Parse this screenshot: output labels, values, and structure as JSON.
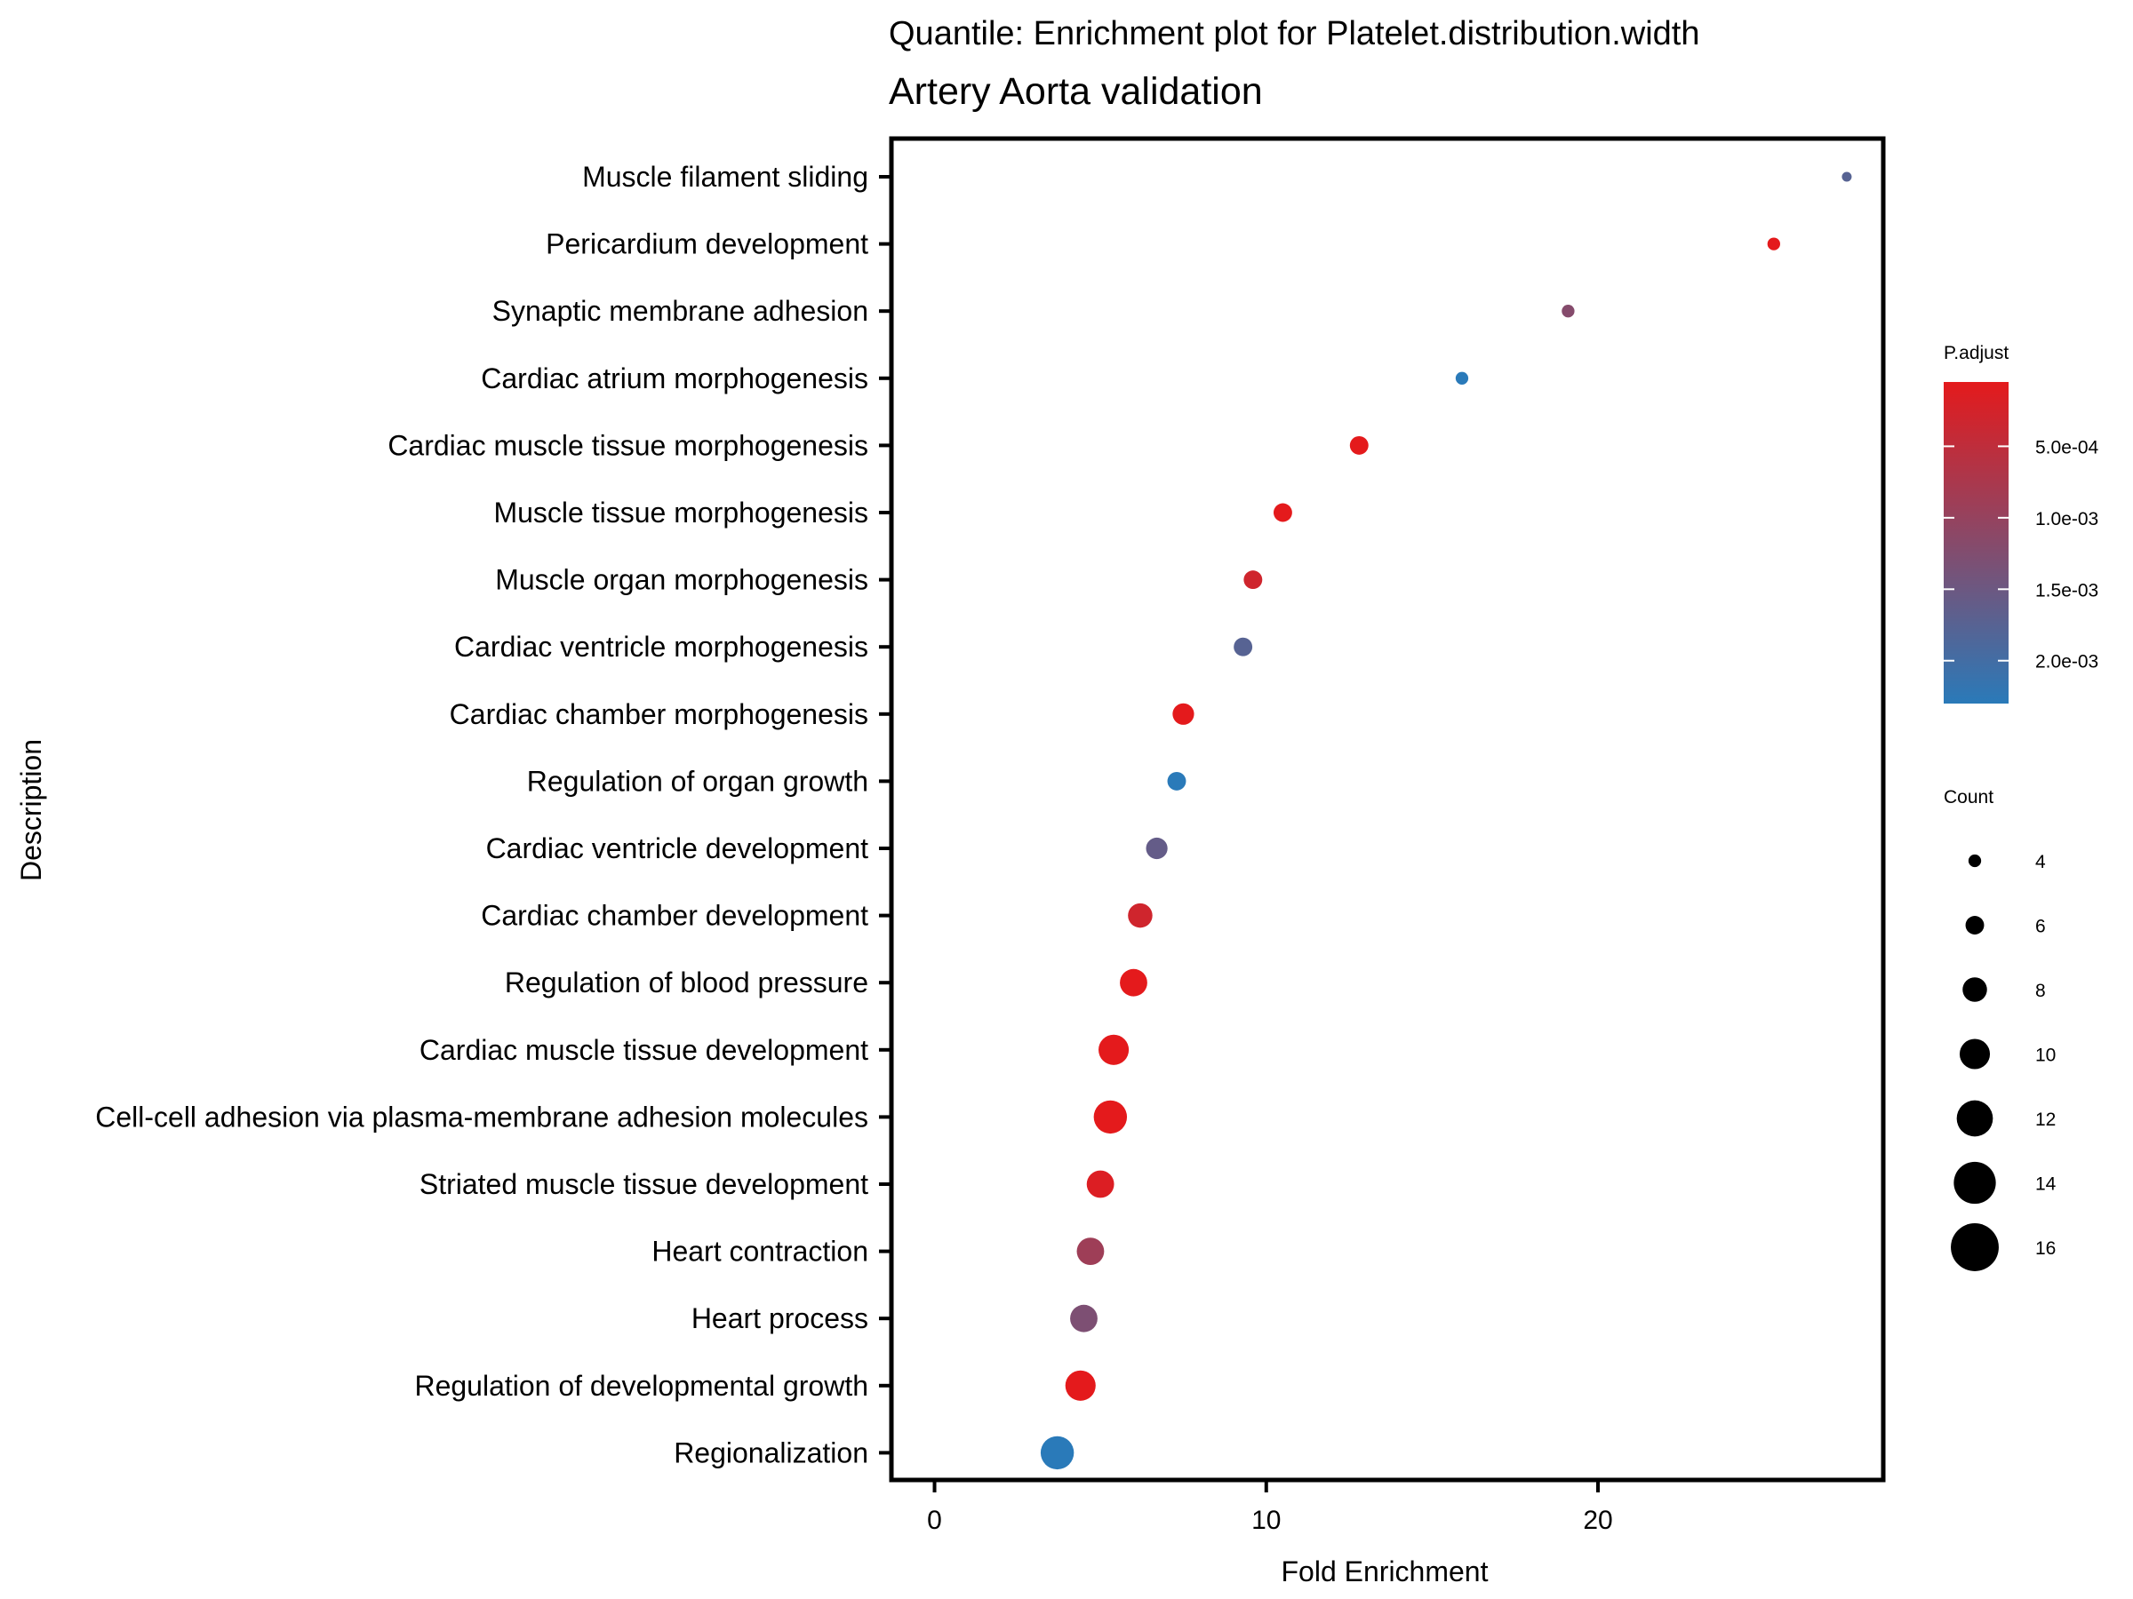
{
  "chart_data": {
    "type": "scatter",
    "title": "Quantile: Enrichment plot for Platelet.distribution.width",
    "subtitle": "Artery Aorta validation",
    "xlabel": "Fold Enrichment",
    "ylabel": "Description",
    "xlim": [
      -1.3,
      28.6
    ],
    "xticks": [
      0,
      10,
      20
    ],
    "xtick_labels": [
      "0",
      "10",
      "20"
    ],
    "grid": false,
    "categories": [
      "Muscle filament sliding",
      "Pericardium development",
      "Synaptic membrane adhesion",
      "Cardiac atrium morphogenesis",
      "Cardiac muscle tissue morphogenesis",
      "Muscle tissue morphogenesis",
      "Muscle organ morphogenesis",
      "Cardiac ventricle morphogenesis",
      "Cardiac chamber morphogenesis",
      "Regulation of organ growth",
      "Cardiac ventricle development",
      "Cardiac chamber development",
      "Regulation of blood pressure",
      "Cardiac muscle tissue development",
      "Cell-cell adhesion via plasma-membrane adhesion molecules",
      "Striated muscle tissue development",
      "Heart contraction",
      "Heart process",
      "Regulation of developmental growth",
      "Regionalization"
    ],
    "fold_enrichment": [
      27.5,
      25.3,
      19.1,
      15.9,
      12.8,
      10.5,
      9.6,
      9.3,
      7.5,
      7.3,
      6.7,
      6.2,
      6.0,
      5.4,
      5.3,
      5.0,
      4.7,
      4.5,
      4.4,
      3.7
    ],
    "count": [
      3,
      4,
      4,
      4,
      6,
      6,
      6,
      6,
      7,
      6,
      7,
      8,
      9,
      10,
      11,
      9,
      9,
      9,
      10,
      11
    ],
    "p_adjust": [
      0.00175,
      5e-05,
      0.0012,
      0.0023,
      5e-05,
      5e-05,
      0.0003,
      0.00175,
      5e-05,
      0.0023,
      0.0016,
      0.0003,
      5e-05,
      5e-05,
      5e-05,
      0.00015,
      0.0009,
      0.0013,
      5e-05,
      0.0023
    ],
    "color_legend": {
      "title": "P.adjust",
      "low_color": "#E41A1C",
      "high_color": "#2A7AB9",
      "min": 5e-05,
      "max": 0.0023,
      "breaks": [
        0.0005,
        0.001,
        0.0015,
        0.002
      ],
      "labels": [
        "5.0e-04",
        "1.0e-03",
        "1.5e-03",
        "2.0e-03"
      ]
    },
    "size_legend": {
      "title": "Count",
      "values": [
        4,
        6,
        8,
        10,
        12,
        14,
        16
      ],
      "labels": [
        "4",
        "6",
        "8",
        "10",
        "12",
        "14",
        "16"
      ]
    }
  }
}
